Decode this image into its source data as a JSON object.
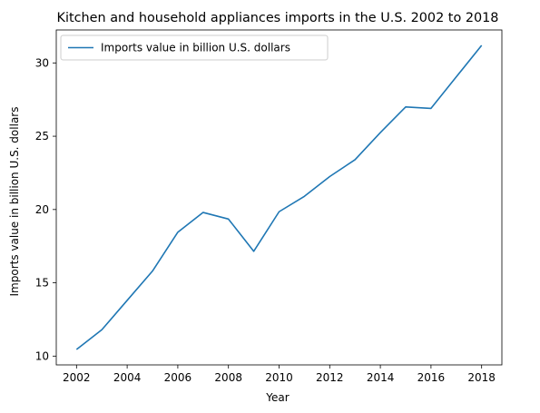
{
  "chart_data": {
    "type": "line",
    "title": "Kitchen and household appliances imports in the U.S. 2002 to 2018",
    "xlabel": "Year",
    "ylabel": "Imports value in billion U.S. dollars",
    "x": [
      2002,
      2003,
      2004,
      2005,
      2006,
      2007,
      2008,
      2009,
      2010,
      2011,
      2012,
      2013,
      2014,
      2015,
      2016,
      2017,
      2018
    ],
    "series": [
      {
        "name": "Imports value in billion U.S. dollars",
        "color": "#1f77b4",
        "values": [
          10.45,
          11.8,
          13.8,
          15.8,
          18.45,
          19.8,
          19.35,
          17.15,
          19.85,
          20.9,
          22.25,
          23.4,
          25.25,
          27.0,
          26.9,
          29.05,
          31.2
        ]
      }
    ],
    "xlim": [
      2001.2,
      2018.8
    ],
    "ylim": [
      9.4,
      32.25
    ],
    "xticks": [
      2002,
      2004,
      2006,
      2008,
      2010,
      2012,
      2014,
      2016,
      2018
    ],
    "yticks": [
      10,
      15,
      20,
      25,
      30
    ],
    "grid": false,
    "legend": "top-left"
  }
}
